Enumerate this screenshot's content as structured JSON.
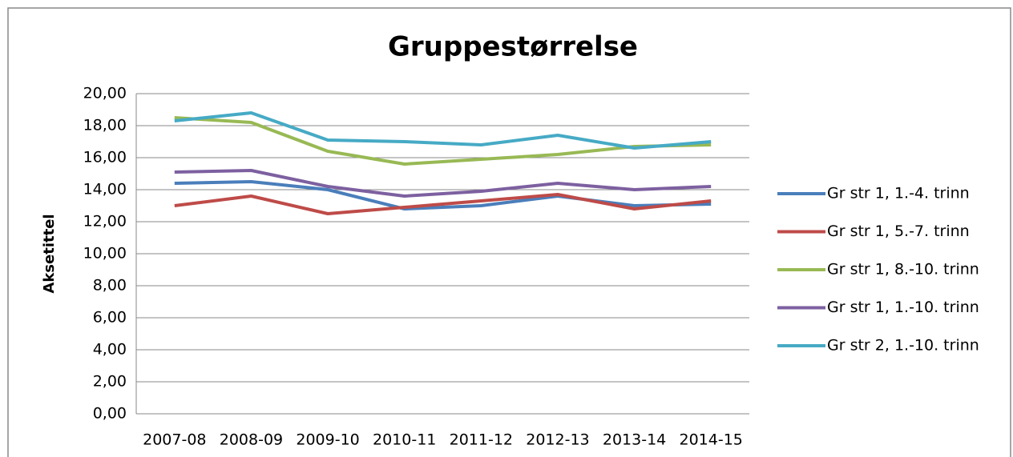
{
  "chart_data": {
    "type": "line",
    "title": "Gruppestørrelse",
    "y_label": "Aksetittel",
    "categories": [
      "2007-08",
      "2008-09",
      "2009-10",
      "2010-11",
      "2011-12",
      "2012-13",
      "2013-14",
      "2014-15"
    ],
    "series": [
      {
        "name": "Gr str 1, 1.-4. trinn",
        "color": "#4a7ebb",
        "values": [
          14.4,
          14.5,
          14.0,
          12.8,
          13.0,
          13.6,
          13.0,
          13.1
        ]
      },
      {
        "name": "Gr str 1, 5.-7. trinn",
        "color": "#be4b48",
        "values": [
          13.0,
          13.6,
          12.5,
          12.9,
          13.3,
          13.7,
          12.8,
          13.3
        ]
      },
      {
        "name": "Gr str 1, 8.-10. trinn",
        "color": "#98b954",
        "values": [
          18.5,
          18.2,
          16.4,
          15.6,
          15.9,
          16.2,
          16.7,
          16.8
        ]
      },
      {
        "name": "Gr str 1, 1.-10. trinn",
        "color": "#7d60a0",
        "values": [
          15.1,
          15.2,
          14.2,
          13.6,
          13.9,
          14.4,
          14.0,
          14.2
        ]
      },
      {
        "name": "Gr str 2, 1.-10. trinn",
        "color": "#46aac5",
        "values": [
          18.3,
          18.8,
          17.1,
          17.0,
          16.8,
          17.4,
          16.6,
          17.0
        ]
      }
    ],
    "ylim": [
      0,
      20
    ],
    "yticks": [
      {
        "value": 0,
        "label": "0,00"
      },
      {
        "value": 2,
        "label": "2,00"
      },
      {
        "value": 4,
        "label": "4,00"
      },
      {
        "value": 6,
        "label": "6,00"
      },
      {
        "value": 8,
        "label": "8,00"
      },
      {
        "value": 10,
        "label": "10,00"
      },
      {
        "value": 12,
        "label": "12,00"
      },
      {
        "value": 14,
        "label": "14,00"
      },
      {
        "value": 16,
        "label": "16,00"
      },
      {
        "value": 18,
        "label": "18,00"
      },
      {
        "value": 20,
        "label": "20,00"
      }
    ],
    "grid": true,
    "legend": "right"
  }
}
